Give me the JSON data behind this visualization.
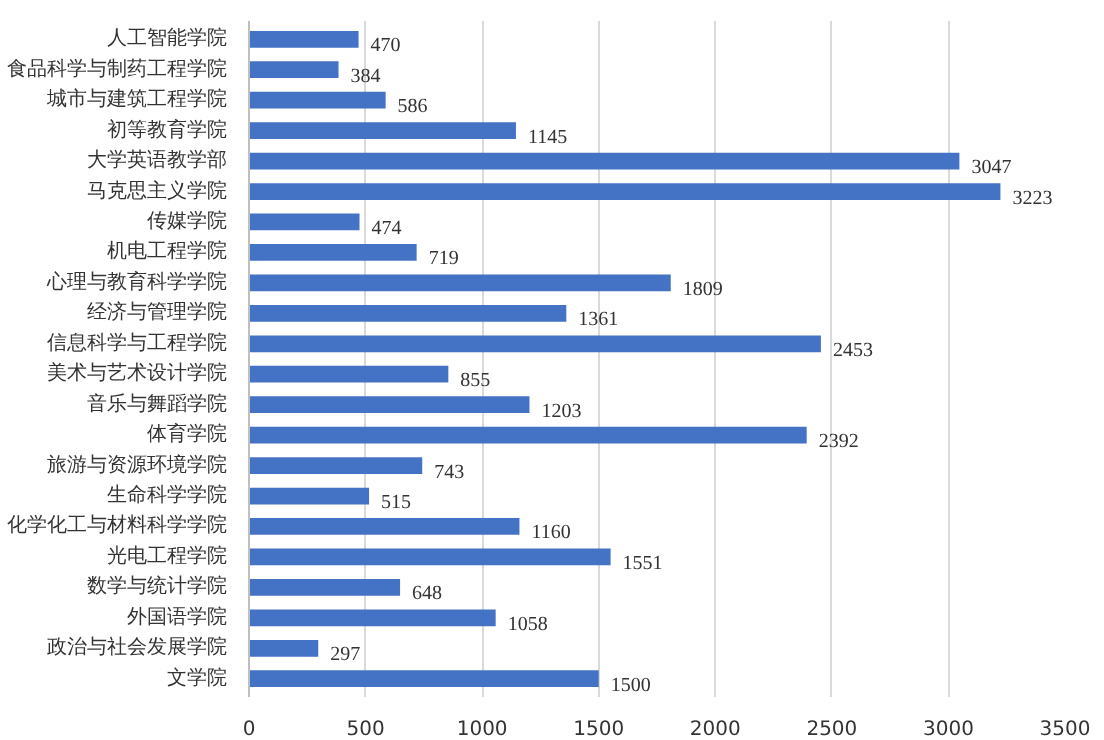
{
  "chart_data": {
    "type": "bar",
    "orientation": "horizontal",
    "categories": [
      "人工智能学院",
      "食品科学与制药工程学院",
      "城市与建筑工程学院",
      "初等教育学院",
      "大学英语教学部",
      "马克思主义学院",
      "传媒学院",
      "机电工程学院",
      "心理与教育科学学院",
      "经济与管理学院",
      "信息科学与工程学院",
      "美术与艺术设计学院",
      "音乐与舞蹈学院",
      "体育学院",
      "旅游与资源环境学院",
      "生命科学学院",
      "化学化工与材料科学学院",
      "光电工程学院",
      "数学与统计学院",
      "外国语学院",
      "政治与社会发展学院",
      "文学院"
    ],
    "values": [
      470,
      384,
      586,
      1145,
      3047,
      3223,
      474,
      719,
      1809,
      1361,
      2453,
      855,
      1203,
      2392,
      743,
      515,
      1160,
      1551,
      648,
      1058,
      297,
      1500
    ],
    "color": "#4472c4",
    "xlim": [
      0,
      3500
    ],
    "xticks": [
      0,
      500,
      1000,
      1500,
      2000,
      2500,
      3000,
      3500
    ],
    "grid": "x",
    "data_labels": true
  }
}
